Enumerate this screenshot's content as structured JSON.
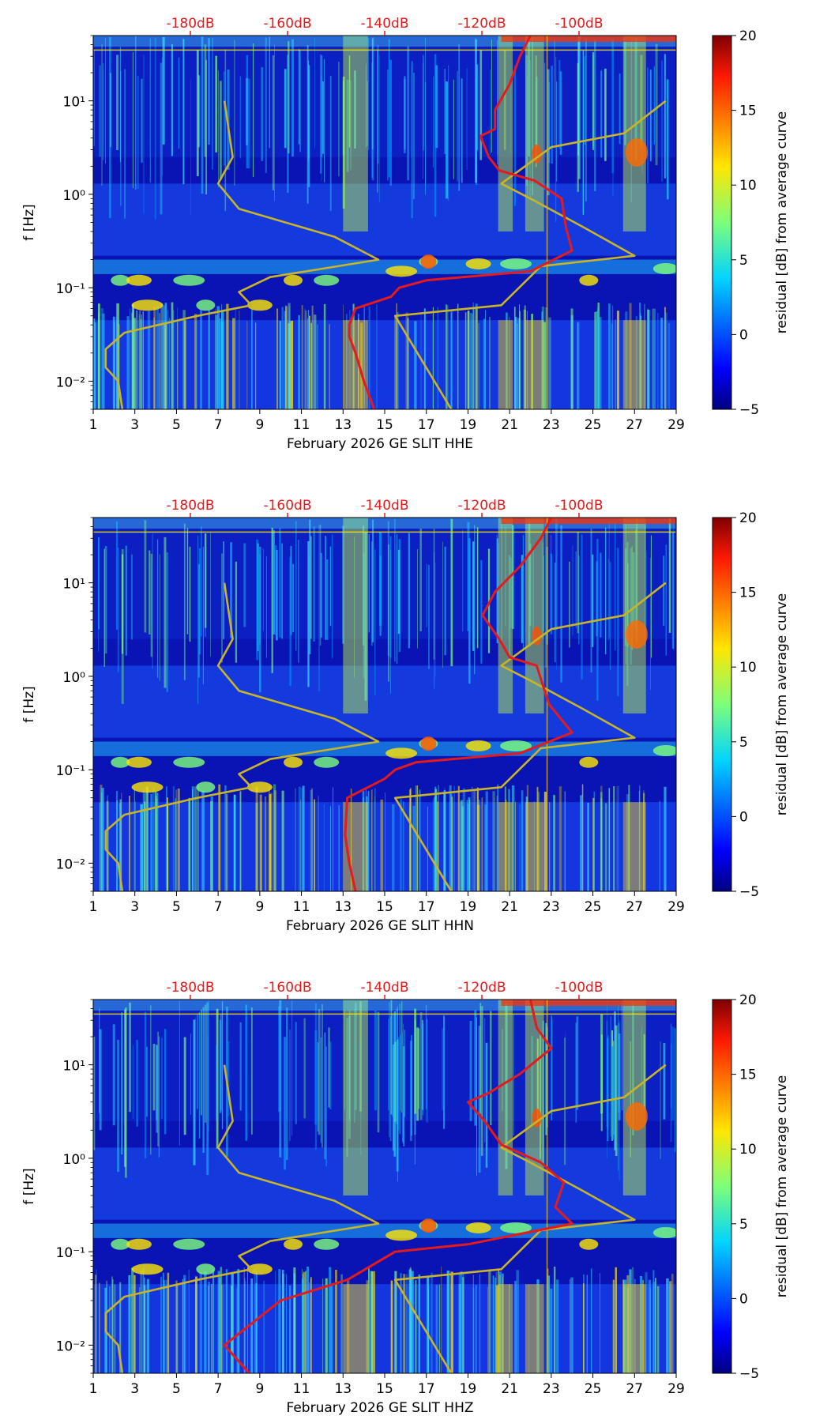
{
  "chart_data": [
    {
      "type": "heatmap",
      "xlabel": "February 2026 GE SLIT  HHE",
      "ylabel": "f [Hz]",
      "x_ticks": [
        "1",
        "3",
        "5",
        "7",
        "9",
        "11",
        "13",
        "15",
        "17",
        "19",
        "21",
        "23",
        "25",
        "27",
        "29"
      ],
      "x_range": [
        1,
        29
      ],
      "y_scale": "log",
      "y_ticks": [
        "10⁻²",
        "10⁻¹",
        "10⁰",
        "10¹"
      ],
      "y_range": [
        0.005,
        50
      ],
      "top_ticks": [
        "-180dB",
        "-160dB",
        "-140dB",
        "-120dB",
        "-100dB"
      ],
      "colorbar": {
        "label": "residual [dB] from average curve",
        "range": [
          -5,
          20
        ],
        "ticks": [
          "20",
          "15",
          "10",
          "5",
          "0",
          "−5"
        ]
      },
      "lines": [
        {
          "color": "#c8b428",
          "values": [
            [
              7.3,
              10
            ],
            [
              7.7,
              2.5
            ],
            [
              7.0,
              1.3
            ],
            [
              8,
              0.7
            ],
            [
              12.6,
              0.35
            ],
            [
              14.7,
              0.2
            ],
            [
              9.5,
              0.13
            ],
            [
              8,
              0.09
            ],
            [
              8.6,
              0.065
            ],
            [
              6,
              0.05
            ],
            [
              2.5,
              0.033
            ],
            [
              1.6,
              0.022
            ],
            [
              1.6,
              0.014
            ],
            [
              2.2,
              0.01
            ],
            [
              2.4,
              0.005
            ]
          ]
        },
        {
          "color": "#c8b428",
          "values": [
            [
              28.5,
              10
            ],
            [
              26.5,
              4.5
            ],
            [
              23,
              3.2
            ],
            [
              20.6,
              1.3
            ],
            [
              22,
              0.9
            ],
            [
              24.5,
              0.45
            ],
            [
              27,
              0.22
            ],
            [
              22.5,
              0.17
            ],
            [
              20.6,
              0.065
            ],
            [
              15.5,
              0.05
            ],
            [
              18.2,
              0.005
            ]
          ]
        },
        {
          "color": "#e41a1c",
          "values": [
            [
              22,
              50
            ],
            [
              21.5,
              30
            ],
            [
              21,
              15
            ],
            [
              20.3,
              8
            ],
            [
              20.3,
              5
            ],
            [
              19.6,
              4.2
            ],
            [
              20,
              2.5
            ],
            [
              20.5,
              1.8
            ],
            [
              22.2,
              1.4
            ],
            [
              23.5,
              0.9
            ],
            [
              23.7,
              0.45
            ],
            [
              24,
              0.25
            ],
            [
              22,
              0.15
            ],
            [
              17,
              0.12
            ],
            [
              15.7,
              0.1
            ],
            [
              15.3,
              0.08
            ],
            [
              13.6,
              0.06
            ],
            [
              13.3,
              0.04
            ],
            [
              13.3,
              0.03
            ],
            [
              13.6,
              0.02
            ],
            [
              14,
              0.01
            ],
            [
              14.5,
              0.005
            ]
          ]
        }
      ]
    },
    {
      "type": "heatmap",
      "xlabel": "February 2026 GE SLIT  HHN",
      "ylabel": "f [Hz]",
      "x_ticks": [
        "1",
        "3",
        "5",
        "7",
        "9",
        "11",
        "13",
        "15",
        "17",
        "19",
        "21",
        "23",
        "25",
        "27",
        "29"
      ],
      "x_range": [
        1,
        29
      ],
      "y_scale": "log",
      "y_ticks": [
        "10⁻²",
        "10⁻¹",
        "10⁰",
        "10¹"
      ],
      "y_range": [
        0.005,
        50
      ],
      "top_ticks": [
        "-180dB",
        "-160dB",
        "-140dB",
        "-120dB",
        "-100dB"
      ],
      "colorbar": {
        "label": "residual [dB] from average curve",
        "range": [
          -5,
          20
        ],
        "ticks": [
          "20",
          "15",
          "10",
          "5",
          "0",
          "−5"
        ]
      },
      "lines": [
        {
          "color": "#c8b428",
          "values": [
            [
              7.3,
              10
            ],
            [
              7.7,
              2.5
            ],
            [
              7.0,
              1.3
            ],
            [
              8,
              0.7
            ],
            [
              12.6,
              0.35
            ],
            [
              14.7,
              0.2
            ],
            [
              9.5,
              0.13
            ],
            [
              8,
              0.09
            ],
            [
              8.6,
              0.065
            ],
            [
              6,
              0.05
            ],
            [
              2.5,
              0.033
            ],
            [
              1.6,
              0.022
            ],
            [
              1.6,
              0.014
            ],
            [
              2.2,
              0.01
            ],
            [
              2.4,
              0.005
            ]
          ]
        },
        {
          "color": "#c8b428",
          "values": [
            [
              28.5,
              10
            ],
            [
              26.5,
              4.5
            ],
            [
              23,
              3.2
            ],
            [
              20.6,
              1.3
            ],
            [
              22,
              0.9
            ],
            [
              24.5,
              0.45
            ],
            [
              27,
              0.22
            ],
            [
              22.5,
              0.17
            ],
            [
              20.6,
              0.065
            ],
            [
              15.5,
              0.05
            ],
            [
              18.2,
              0.005
            ]
          ]
        },
        {
          "color": "#e41a1c",
          "values": [
            [
              23,
              50
            ],
            [
              22.5,
              30
            ],
            [
              21.5,
              15
            ],
            [
              20.3,
              8
            ],
            [
              19.7,
              4.5
            ],
            [
              20.5,
              2.5
            ],
            [
              21,
              1.6
            ],
            [
              22.3,
              1.3
            ],
            [
              22.6,
              0.8
            ],
            [
              22.9,
              0.5
            ],
            [
              24,
              0.25
            ],
            [
              21.5,
              0.15
            ],
            [
              16.5,
              0.12
            ],
            [
              15.5,
              0.1
            ],
            [
              15,
              0.08
            ],
            [
              13.2,
              0.05
            ],
            [
              13.1,
              0.02
            ],
            [
              13.3,
              0.01
            ],
            [
              13.6,
              0.005
            ]
          ]
        }
      ]
    },
    {
      "type": "heatmap",
      "xlabel": "February 2026 GE SLIT  HHZ",
      "ylabel": "f [Hz]",
      "x_ticks": [
        "1",
        "3",
        "5",
        "7",
        "9",
        "11",
        "13",
        "15",
        "17",
        "19",
        "21",
        "23",
        "25",
        "27",
        "29"
      ],
      "x_range": [
        1,
        29
      ],
      "y_scale": "log",
      "y_ticks": [
        "10⁻²",
        "10⁻¹",
        "10⁰",
        "10¹"
      ],
      "y_range": [
        0.005,
        50
      ],
      "top_ticks": [
        "-180dB",
        "-160dB",
        "-140dB",
        "-120dB",
        "-100dB"
      ],
      "colorbar": {
        "label": "residual [dB] from average curve",
        "range": [
          -5,
          20
        ],
        "ticks": [
          "20",
          "15",
          "10",
          "5",
          "0",
          "−5"
        ]
      },
      "lines": [
        {
          "color": "#c8b428",
          "values": [
            [
              7.3,
              10
            ],
            [
              7.7,
              2.5
            ],
            [
              7.0,
              1.3
            ],
            [
              8,
              0.7
            ],
            [
              12.6,
              0.35
            ],
            [
              14.7,
              0.2
            ],
            [
              9.5,
              0.13
            ],
            [
              8,
              0.09
            ],
            [
              8.6,
              0.065
            ],
            [
              6,
              0.05
            ],
            [
              2.5,
              0.033
            ],
            [
              1.6,
              0.022
            ],
            [
              1.6,
              0.014
            ],
            [
              2.2,
              0.01
            ],
            [
              2.4,
              0.005
            ]
          ]
        },
        {
          "color": "#c8b428",
          "values": [
            [
              28.5,
              10
            ],
            [
              26.5,
              4.5
            ],
            [
              23,
              3.2
            ],
            [
              20.6,
              1.3
            ],
            [
              22,
              0.9
            ],
            [
              24.5,
              0.45
            ],
            [
              27,
              0.22
            ],
            [
              22.5,
              0.17
            ],
            [
              20.6,
              0.065
            ],
            [
              15.5,
              0.05
            ],
            [
              18.2,
              0.005
            ]
          ]
        },
        {
          "color": "#e41a1c",
          "values": [
            [
              22,
              50
            ],
            [
              22.3,
              25
            ],
            [
              23,
              15
            ],
            [
              21.5,
              8
            ],
            [
              20,
              5
            ],
            [
              19,
              4
            ],
            [
              19.8,
              2.5
            ],
            [
              20.6,
              1.4
            ],
            [
              22.5,
              0.9
            ],
            [
              23.6,
              0.55
            ],
            [
              23.2,
              0.3
            ],
            [
              24,
              0.2
            ],
            [
              19,
              0.12
            ],
            [
              15.5,
              0.1
            ],
            [
              13.2,
              0.05
            ],
            [
              10,
              0.03
            ],
            [
              7.3,
              0.01
            ],
            [
              8.5,
              0.005
            ]
          ]
        }
      ]
    }
  ]
}
